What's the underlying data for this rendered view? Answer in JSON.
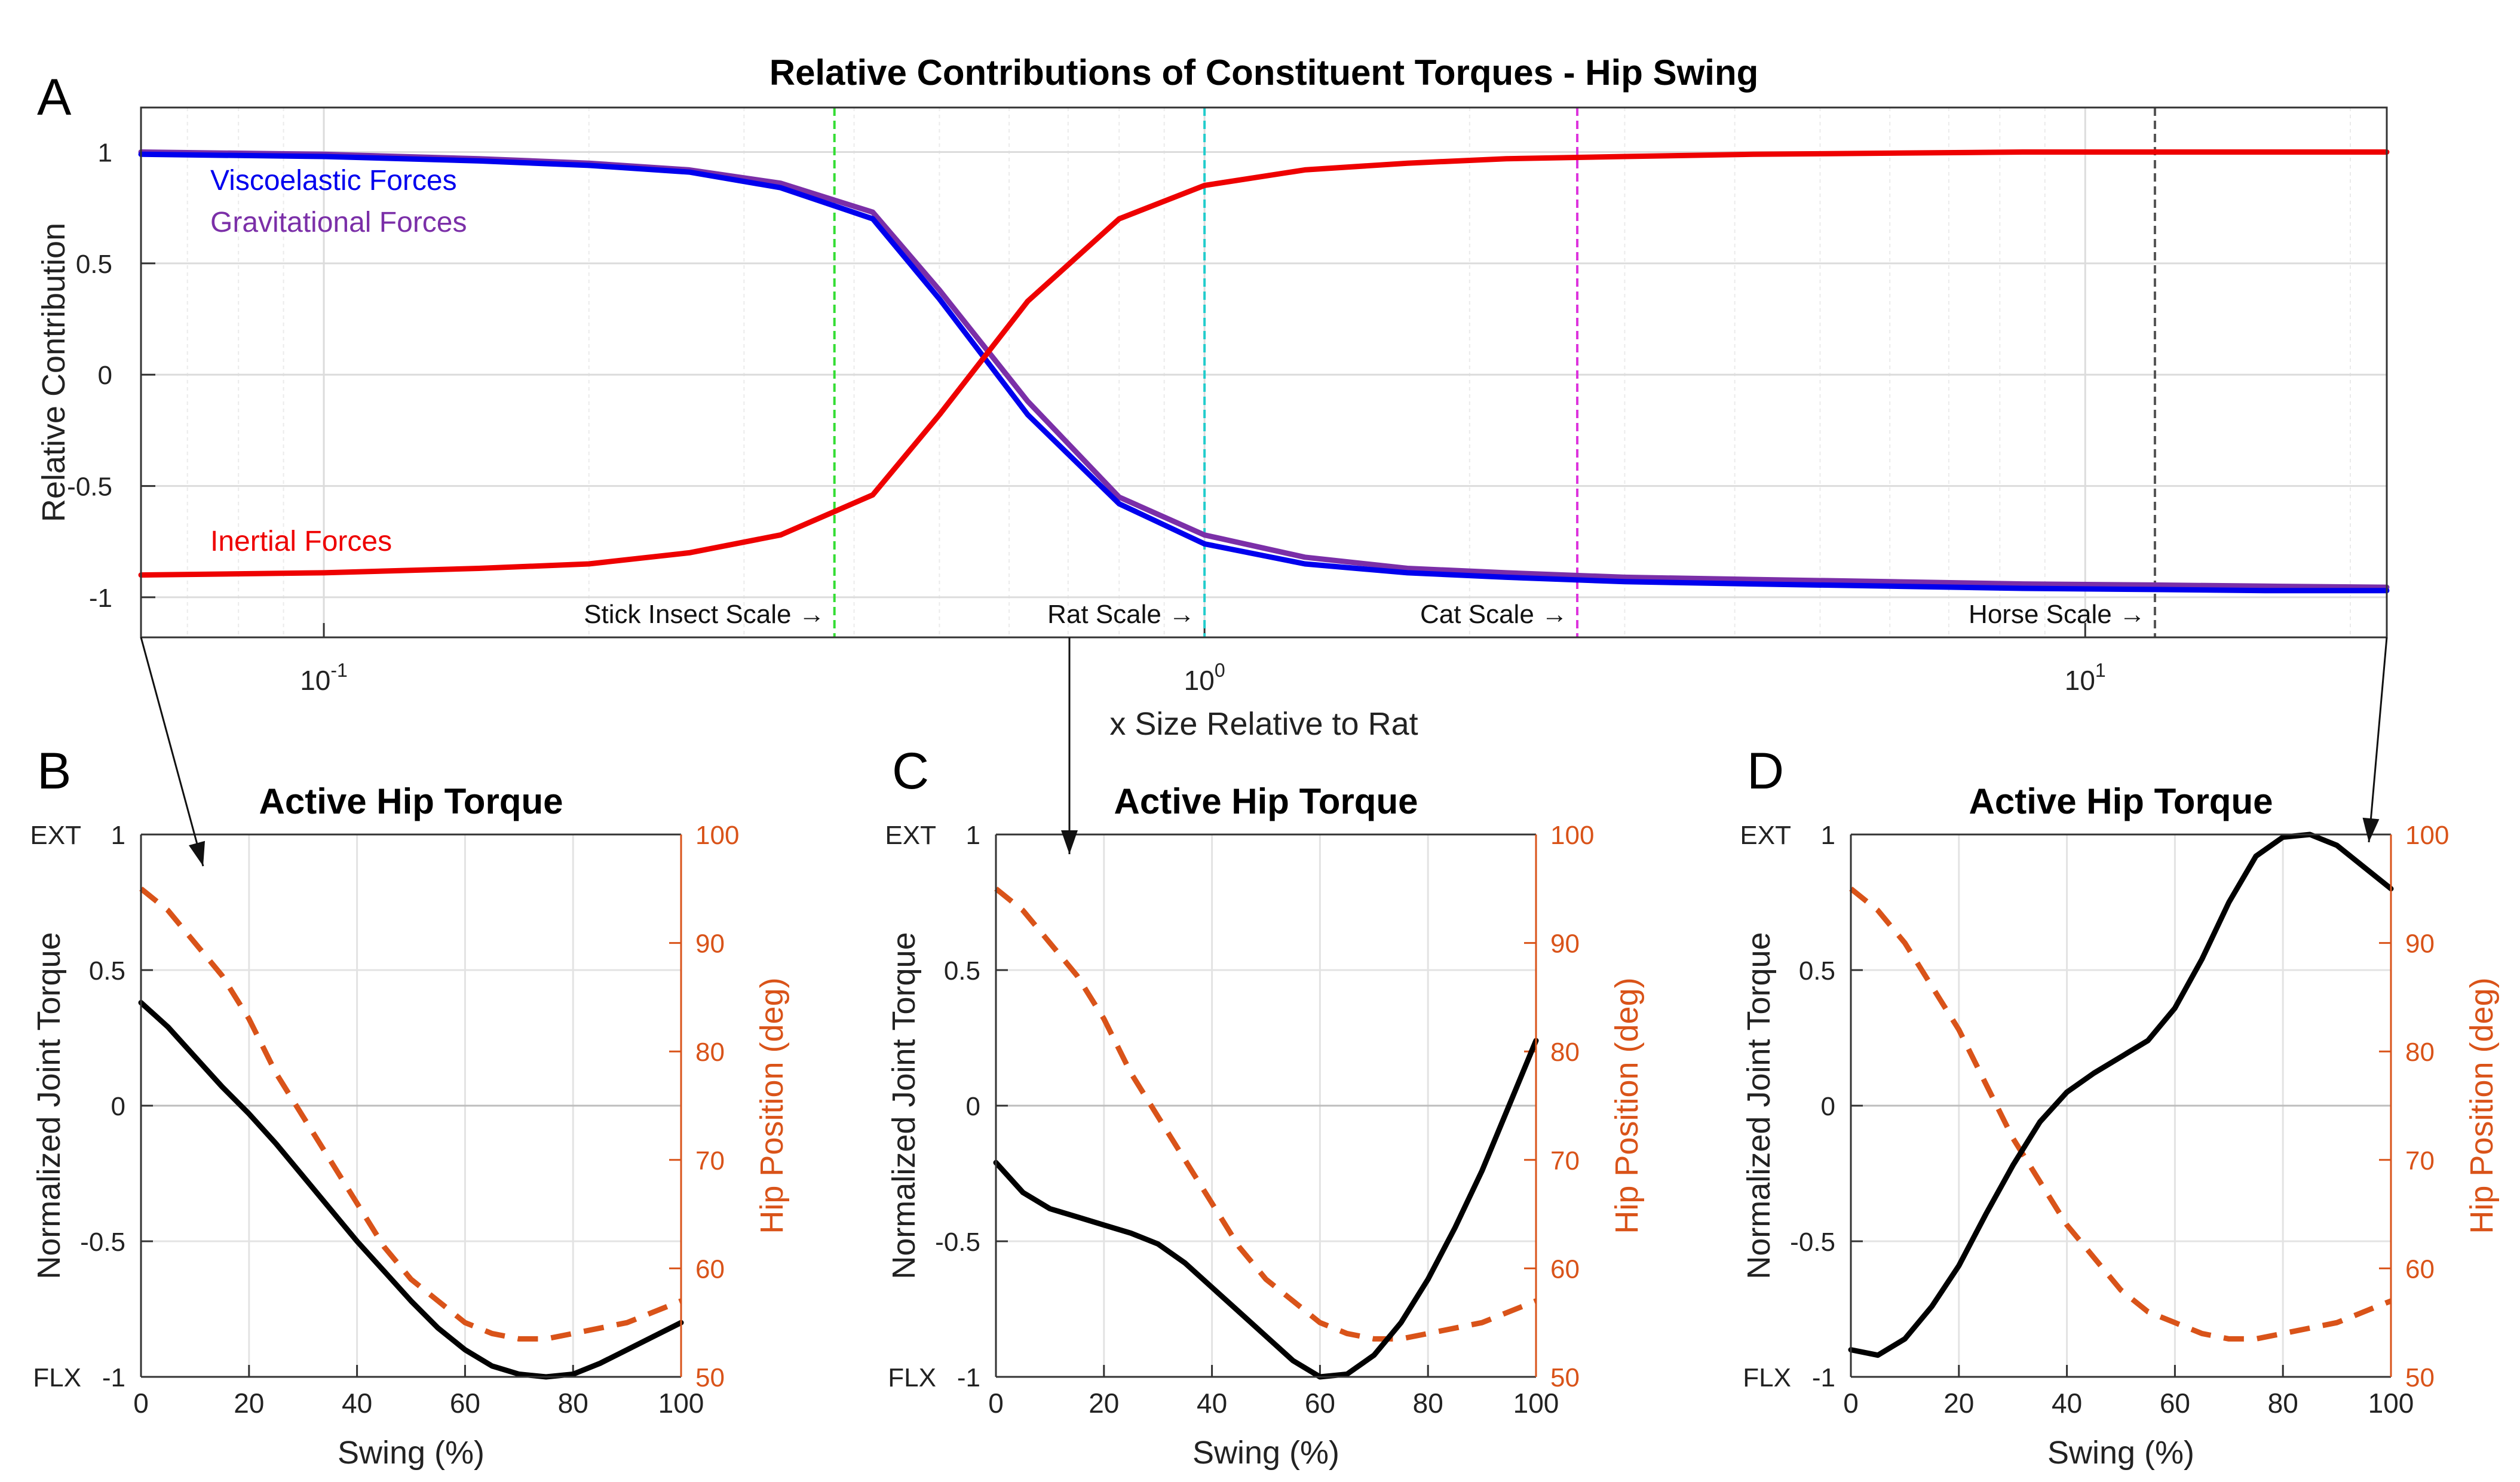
{
  "chart_data": [
    {
      "panel": "A",
      "type": "line",
      "title": "Relative Contributions of Constituent Torques - Hip Swing",
      "xlabel": "x Size Relative to Rat",
      "ylabel": "Relative Contribution",
      "xscale": "log",
      "xlim": [
        0.062,
        22
      ],
      "ylim": [
        -1.18,
        1.2
      ],
      "yticks": [
        {
          "value": 1,
          "label": "1"
        },
        {
          "value": 0.5,
          "label": "0.5"
        },
        {
          "value": 0,
          "label": "0"
        },
        {
          "value": -0.5,
          "label": "-0.5"
        },
        {
          "value": -1,
          "label": "-1"
        }
      ],
      "xticks": [
        {
          "value": 0.1,
          "base": "10",
          "exp": "-1"
        },
        {
          "value": 1,
          "base": "10",
          "exp": "0"
        },
        {
          "value": 10,
          "base": "10",
          "exp": "1"
        }
      ],
      "grid": true,
      "x": [
        0.062,
        0.1,
        0.15,
        0.2,
        0.26,
        0.33,
        0.42,
        0.5,
        0.63,
        0.8,
        1.0,
        1.3,
        1.7,
        2.2,
        3.0,
        4.2,
        6,
        8.5,
        12,
        16,
        22
      ],
      "series": [
        {
          "name": "Viscoelastic Forces",
          "color": "#0000ee",
          "values": [
            0.99,
            0.98,
            0.96,
            0.94,
            0.91,
            0.84,
            0.7,
            0.34,
            -0.18,
            -0.58,
            -0.76,
            -0.85,
            -0.89,
            -0.91,
            -0.93,
            -0.94,
            -0.95,
            -0.96,
            -0.965,
            -0.97,
            -0.97
          ]
        },
        {
          "name": "Gravitational Forces",
          "color": "#7b2fa8",
          "values": [
            1.0,
            0.99,
            0.97,
            0.95,
            0.92,
            0.86,
            0.73,
            0.38,
            -0.12,
            -0.55,
            -0.72,
            -0.82,
            -0.87,
            -0.89,
            -0.91,
            -0.92,
            -0.93,
            -0.94,
            -0.945,
            -0.95,
            -0.955
          ]
        },
        {
          "name": "Inertial Forces",
          "color": "#ee0000",
          "values": [
            -0.9,
            -0.89,
            -0.87,
            -0.85,
            -0.8,
            -0.72,
            -0.54,
            -0.18,
            0.33,
            0.7,
            0.85,
            0.92,
            0.95,
            0.97,
            0.98,
            0.99,
            0.995,
            1.0,
            1.0,
            1.0,
            1.0
          ]
        }
      ],
      "vlines": [
        {
          "x": 0.38,
          "label": "Stick Insect Scale",
          "color": "#33dd33"
        },
        {
          "x": 1.0,
          "label": "Rat Scale",
          "color": "#22cccc"
        },
        {
          "x": 2.65,
          "label": "Cat Scale",
          "color": "#dd33dd"
        },
        {
          "x": 12.0,
          "label": "Horse Scale",
          "color": "#555555"
        }
      ],
      "arrow_glyph": "→"
    },
    {
      "panel": "B",
      "type": "line",
      "title": "Active Hip Torque",
      "xlabel": "Swing (%)",
      "ylabel": "Normalized Joint Torque",
      "y2label": "Hip Position (deg)",
      "xlim": [
        0,
        100
      ],
      "ylim": [
        -1,
        1
      ],
      "y2lim": [
        50,
        100
      ],
      "xticks": [
        "0",
        "20",
        "40",
        "60",
        "80",
        "100"
      ],
      "yticks": [
        "1",
        "0.5",
        "0",
        "-0.5",
        "-1"
      ],
      "y2ticks": [
        "100",
        "90",
        "80",
        "70",
        "60",
        "50"
      ],
      "ext_label": "EXT",
      "flx_label": "FLX",
      "x": [
        0,
        5,
        10,
        15,
        20,
        25,
        30,
        35,
        40,
        45,
        50,
        55,
        60,
        65,
        70,
        75,
        80,
        85,
        90,
        95,
        100
      ],
      "torque": {
        "name": "Active Hip Torque",
        "color": "#000000",
        "values": [
          0.38,
          0.29,
          0.18,
          0.07,
          -0.03,
          -0.14,
          -0.26,
          -0.38,
          -0.5,
          -0.61,
          -0.72,
          -0.82,
          -0.9,
          -0.96,
          -0.99,
          -1.0,
          -0.99,
          -0.95,
          -0.9,
          -0.85,
          -0.8
        ]
      },
      "position": {
        "name": "Hip Position",
        "color": "#d95319",
        "values": [
          95,
          93,
          90,
          87,
          83,
          78,
          74,
          70,
          66,
          62,
          59,
          57,
          55,
          54,
          53.5,
          53.5,
          54,
          54.5,
          55,
          56,
          57
        ]
      }
    },
    {
      "panel": "C",
      "type": "line",
      "title": "Active Hip Torque",
      "xlabel": "Swing (%)",
      "ylabel": "Normalized Joint Torque",
      "y2label": "Hip Position (deg)",
      "xlim": [
        0,
        100
      ],
      "ylim": [
        -1,
        1
      ],
      "y2lim": [
        50,
        100
      ],
      "xticks": [
        "0",
        "20",
        "40",
        "60",
        "80",
        "100"
      ],
      "yticks": [
        "1",
        "0.5",
        "0",
        "-0.5",
        "-1"
      ],
      "y2ticks": [
        "100",
        "90",
        "80",
        "70",
        "60",
        "50"
      ],
      "ext_label": "EXT",
      "flx_label": "FLX",
      "x": [
        0,
        5,
        10,
        15,
        20,
        25,
        30,
        35,
        40,
        45,
        50,
        55,
        60,
        65,
        70,
        75,
        80,
        85,
        90,
        95,
        100
      ],
      "torque": {
        "name": "Active Hip Torque",
        "color": "#000000",
        "values": [
          -0.21,
          -0.32,
          -0.38,
          -0.41,
          -0.44,
          -0.47,
          -0.51,
          -0.58,
          -0.67,
          -0.76,
          -0.85,
          -0.94,
          -1.0,
          -0.99,
          -0.92,
          -0.8,
          -0.64,
          -0.45,
          -0.24,
          0.0,
          0.24
        ]
      },
      "position": {
        "name": "Hip Position",
        "color": "#d95319",
        "values": [
          95,
          93,
          90,
          87,
          83,
          78,
          74,
          70,
          66,
          62,
          59,
          57,
          55,
          54,
          53.5,
          53.5,
          54,
          54.5,
          55,
          56,
          57
        ]
      }
    },
    {
      "panel": "D",
      "type": "line",
      "title": "Active Hip Torque",
      "xlabel": "Swing (%)",
      "ylabel": "Normalized Joint Torque",
      "y2label": "Hip Position (deg)",
      "xlim": [
        0,
        100
      ],
      "ylim": [
        -1,
        1
      ],
      "y2lim": [
        50,
        100
      ],
      "xticks": [
        "0",
        "20",
        "40",
        "60",
        "80",
        "100"
      ],
      "yticks": [
        "1",
        "0.5",
        "0",
        "-0.5",
        "-1"
      ],
      "y2ticks": [
        "100",
        "90",
        "80",
        "70",
        "60",
        "50"
      ],
      "ext_label": "EXT",
      "flx_label": "FLX",
      "x": [
        0,
        5,
        10,
        15,
        20,
        25,
        30,
        35,
        40,
        45,
        50,
        55,
        60,
        65,
        70,
        75,
        80,
        85,
        90,
        95,
        100
      ],
      "torque": {
        "name": "Active Hip Torque",
        "color": "#000000",
        "values": [
          -0.9,
          -0.92,
          -0.86,
          -0.74,
          -0.59,
          -0.4,
          -0.22,
          -0.06,
          0.05,
          0.12,
          0.18,
          0.24,
          0.36,
          0.54,
          0.75,
          0.92,
          0.99,
          1.0,
          0.96,
          0.88,
          0.8
        ]
      },
      "position": {
        "name": "Hip Position",
        "color": "#d95319",
        "values": [
          95,
          93,
          90,
          86,
          82,
          77,
          72,
          68,
          64,
          61,
          58,
          56,
          55,
          54,
          53.5,
          53.5,
          54,
          54.5,
          55,
          56,
          57
        ]
      }
    }
  ],
  "panel_labels": [
    "A",
    "B",
    "C",
    "D"
  ]
}
